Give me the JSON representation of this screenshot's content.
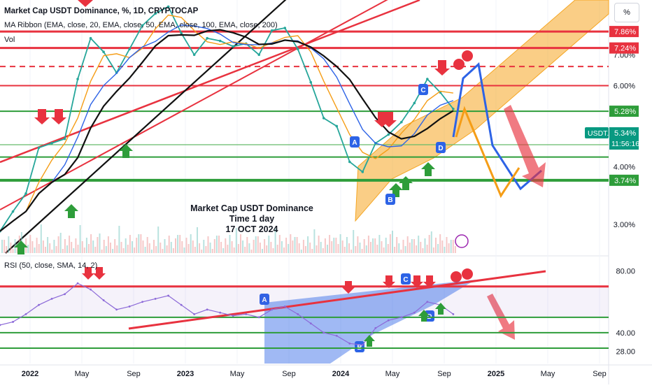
{
  "window": {
    "title": "Market Cap USDT Dominance, %, 1D, CRYPTOCAP",
    "indicator_ribbon": "MA Ribbon (EMA, close, 20, EMA, close, 50, EMA, close, 100, EMA, close, 200)",
    "indicator_vol": "Vol",
    "indicator_rsi": "RSI (50, close, SMA, 14, 2)",
    "percent_button": "%"
  },
  "annotation": {
    "line1": "Market Cap USDT Dominance",
    "line2": "Time 1 day",
    "line3": "17 OCT 2024"
  },
  "price_axis": {
    "ticks": [
      "7.00%",
      "6.00%",
      "4.00%",
      "3.00%"
    ],
    "level_badges": [
      "7.86%",
      "7.24%",
      "5.28%",
      "3.74%"
    ],
    "current": {
      "label": "USDT.D",
      "value": "5.34%",
      "countdown": "11:56:16"
    }
  },
  "rsi_axis": {
    "ticks": [
      "80.00",
      "40.00",
      "28.00"
    ]
  },
  "time_axis": {
    "labels": [
      "2022",
      "May",
      "Sep",
      "2023",
      "May",
      "Sep",
      "2024",
      "May",
      "Sep",
      "2025",
      "May",
      "Sep"
    ]
  },
  "markers": {
    "labels": [
      "A",
      "B",
      "C",
      "D"
    ]
  },
  "colors": {
    "red_line": "#e8323f",
    "green_line": "#2e9d3a",
    "orange_channel": "#f5a623",
    "blue_path": "#2d63e6",
    "orange_path": "#f59d16",
    "rsi_line": "#8c6ad8",
    "badge_red": "#e8323f",
    "badge_green": "#2e9d3a",
    "badge_current": "#089981"
  },
  "chart_data": {
    "type": "line",
    "title": "Market Cap USDT Dominance, %, 1D, CRYPTOCAP",
    "xlabel": "",
    "ylabel": "",
    "x_range": [
      "2021-11",
      "2025-10"
    ],
    "y_scale": "log",
    "ylim": [
      2.6,
      9.2
    ],
    "horizontal_levels": [
      7.86,
      7.24,
      6.6,
      6.0,
      5.28,
      4.2,
      3.74
    ],
    "series": [
      {
        "x": [
          "2021-11",
          "2021-12",
          "2022-01",
          "2022-02",
          "2022-03",
          "2022-04",
          "2022-05",
          "2022-06",
          "2022-07",
          "2022-08",
          "2022-09",
          "2022-10",
          "2022-11",
          "2022-12",
          "2023-01",
          "2023-02",
          "2023-03",
          "2023-04",
          "2023-05",
          "2023-06",
          "2023-07",
          "2023-08",
          "2023-09",
          "2023-10",
          "2023-11",
          "2023-12",
          "2024-01",
          "2024-02",
          "2024-03",
          "2024-04",
          "2024-05",
          "2024-06",
          "2024-07",
          "2024-08",
          "2024-09",
          "2024-10"
        ],
        "values": [
          2.9,
          3.2,
          3.5,
          4.4,
          4.5,
          4.6,
          6.2,
          7.6,
          7.1,
          6.4,
          7.2,
          8.1,
          8.6,
          8.9,
          7.8,
          7.0,
          7.6,
          7.5,
          7.3,
          7.4,
          7.0,
          7.9,
          8.0,
          7.2,
          6.1,
          5.1,
          4.9,
          4.1,
          3.9,
          4.5,
          4.7,
          5.0,
          5.5,
          6.2,
          5.8,
          5.34
        ]
      }
    ],
    "rsi": {
      "title": "RSI (50, close, SMA, 14, 2)",
      "ylim": [
        20,
        88
      ],
      "levels": [
        70,
        50,
        40,
        30
      ],
      "values": [
        45,
        47,
        52,
        58,
        62,
        65,
        72,
        68,
        61,
        55,
        57,
        60,
        62,
        64,
        58,
        52,
        55,
        53,
        51,
        52,
        50,
        55,
        57,
        52,
        46,
        40,
        38,
        33,
        32,
        43,
        48,
        50,
        53,
        60,
        58,
        52
      ]
    }
  }
}
